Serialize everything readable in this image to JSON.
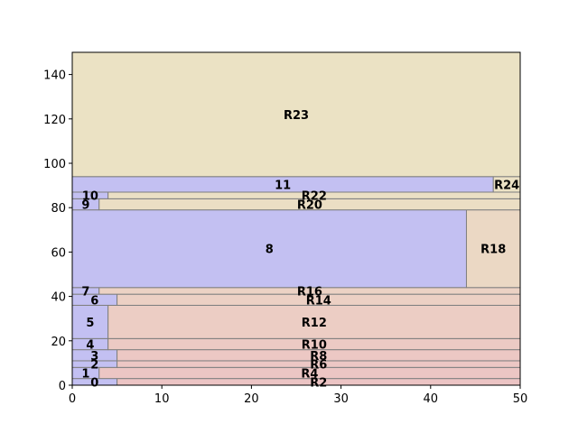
{
  "chart_data": {
    "type": "rectangle-packing",
    "title": "",
    "xlabel": "",
    "ylabel": "",
    "xlim": [
      0,
      50
    ],
    "ylim": [
      0,
      150
    ],
    "x_ticks": [
      0,
      10,
      20,
      30,
      40,
      50
    ],
    "y_ticks": [
      0,
      20,
      40,
      60,
      80,
      100,
      120,
      140
    ],
    "grid": false,
    "colors": {
      "placed": "#c3c0f2",
      "residual_top": "#ebe2c4",
      "residual_bottom": "#ecc4c4",
      "edge": "#7f7f7f"
    },
    "rectangles": [
      {
        "label": "0",
        "kind": "placed",
        "x0": 0,
        "x1": 5,
        "y0": 0,
        "y1": 3
      },
      {
        "label": "R2",
        "kind": "residual",
        "x0": 5,
        "x1": 50,
        "y0": 0,
        "y1": 3
      },
      {
        "label": "1",
        "kind": "placed",
        "x0": 0,
        "x1": 3,
        "y0": 3,
        "y1": 8
      },
      {
        "label": "R4",
        "kind": "residual",
        "x0": 3,
        "x1": 50,
        "y0": 3,
        "y1": 8
      },
      {
        "label": "2",
        "kind": "placed",
        "x0": 0,
        "x1": 5,
        "y0": 8,
        "y1": 11
      },
      {
        "label": "R6",
        "kind": "residual",
        "x0": 5,
        "x1": 50,
        "y0": 8,
        "y1": 11
      },
      {
        "label": "3",
        "kind": "placed",
        "x0": 0,
        "x1": 5,
        "y0": 11,
        "y1": 16
      },
      {
        "label": "R8",
        "kind": "residual",
        "x0": 5,
        "x1": 50,
        "y0": 11,
        "y1": 16
      },
      {
        "label": "4",
        "kind": "placed",
        "x0": 0,
        "x1": 4,
        "y0": 16,
        "y1": 21
      },
      {
        "label": "R10",
        "kind": "residual",
        "x0": 4,
        "x1": 50,
        "y0": 16,
        "y1": 21
      },
      {
        "label": "5",
        "kind": "placed",
        "x0": 0,
        "x1": 4,
        "y0": 21,
        "y1": 36
      },
      {
        "label": "R12",
        "kind": "residual",
        "x0": 4,
        "x1": 50,
        "y0": 21,
        "y1": 36
      },
      {
        "label": "6",
        "kind": "placed",
        "x0": 0,
        "x1": 5,
        "y0": 36,
        "y1": 41
      },
      {
        "label": "R14",
        "kind": "residual",
        "x0": 5,
        "x1": 50,
        "y0": 36,
        "y1": 41
      },
      {
        "label": "7",
        "kind": "placed",
        "x0": 0,
        "x1": 3,
        "y0": 41,
        "y1": 44
      },
      {
        "label": "R16",
        "kind": "residual",
        "x0": 3,
        "x1": 50,
        "y0": 41,
        "y1": 44
      },
      {
        "label": "8",
        "kind": "placed",
        "x0": 0,
        "x1": 44,
        "y0": 44,
        "y1": 79
      },
      {
        "label": "R18",
        "kind": "residual",
        "x0": 44,
        "x1": 50,
        "y0": 44,
        "y1": 79
      },
      {
        "label": "9",
        "kind": "placed",
        "x0": 0,
        "x1": 3,
        "y0": 79,
        "y1": 84
      },
      {
        "label": "R20",
        "kind": "residual",
        "x0": 3,
        "x1": 50,
        "y0": 79,
        "y1": 84
      },
      {
        "label": "10",
        "kind": "placed",
        "x0": 0,
        "x1": 4,
        "y0": 84,
        "y1": 87
      },
      {
        "label": "R22",
        "kind": "residual",
        "x0": 4,
        "x1": 50,
        "y0": 84,
        "y1": 87
      },
      {
        "label": "11",
        "kind": "placed",
        "x0": 0,
        "x1": 47,
        "y0": 87,
        "y1": 94
      },
      {
        "label": "R24",
        "kind": "residual",
        "x0": 47,
        "x1": 50,
        "y0": 87,
        "y1": 94
      },
      {
        "label": "R23",
        "kind": "residual",
        "x0": 0,
        "x1": 50,
        "y0": 94,
        "y1": 150
      }
    ]
  }
}
